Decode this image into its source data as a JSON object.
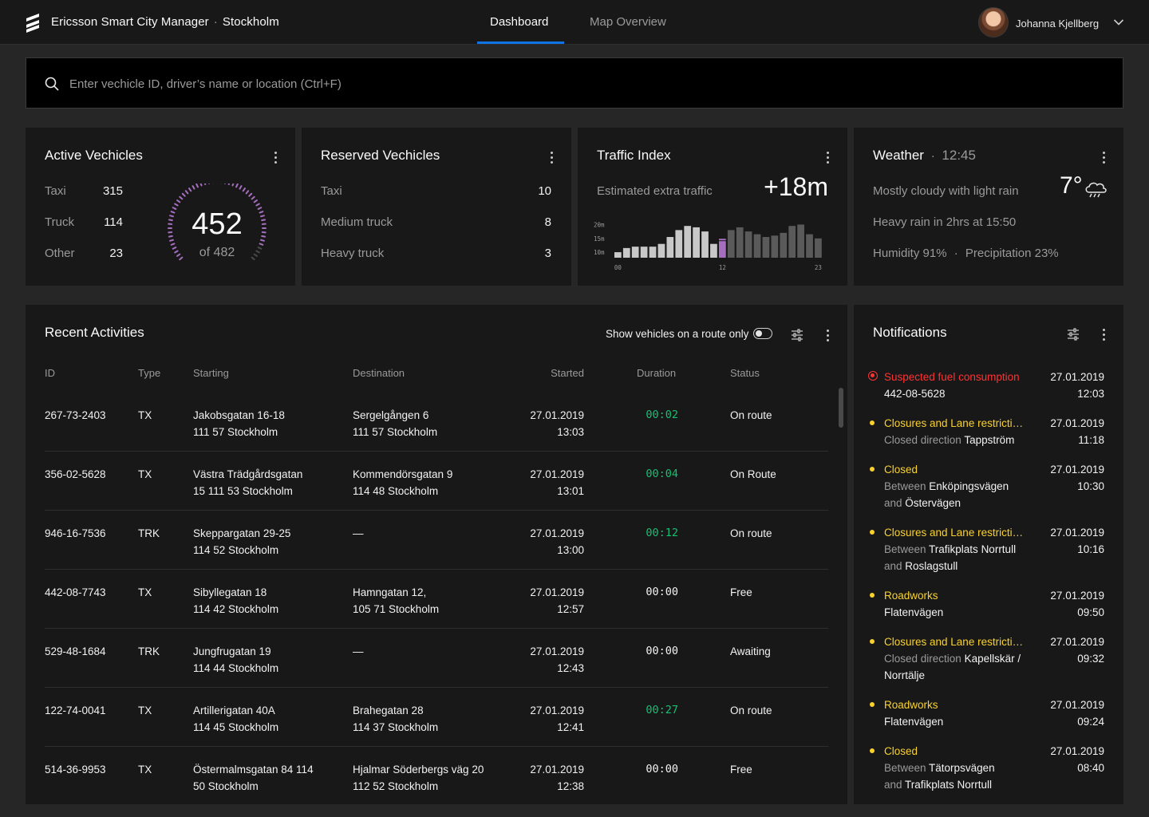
{
  "app": {
    "name": "Ericsson Smart City Manager",
    "separator": "·",
    "city": "Stockholm"
  },
  "nav": {
    "tabs": [
      {
        "label": "Dashboard",
        "active": true
      },
      {
        "label": "Map Overview",
        "active": false
      }
    ]
  },
  "user": {
    "name": "Johanna Kjellberg",
    "avatar_icon": "avatar-photo",
    "menu_icon": "chevron-down-icon"
  },
  "search": {
    "placeholder": "Enter vechicle ID, driver’s name or location (Ctrl+F)",
    "value": "",
    "icon": "search-icon"
  },
  "active_vehicles": {
    "title": "Active Vechicles",
    "rows": [
      {
        "label": "Taxi",
        "value": "315"
      },
      {
        "label": "Truck",
        "value": "114"
      },
      {
        "label": "Other",
        "value": "23"
      }
    ],
    "total": "452",
    "of_label": "of 482",
    "gauge_fraction": 0.938,
    "gauge_color": "#a56ebe"
  },
  "reserved_vehicles": {
    "title": "Reserved Vechicles",
    "rows": [
      {
        "label": "Taxi",
        "value": "10"
      },
      {
        "label": "Medium truck",
        "value": "8"
      },
      {
        "label": "Heavy truck",
        "value": "3"
      }
    ]
  },
  "traffic_index": {
    "title": "Traffic Index",
    "subtitle": "Estimated extra traffic",
    "value": "+18m",
    "highlight_color": "#a56ebe"
  },
  "chart_data": {
    "type": "bar",
    "title": "",
    "categories": [
      "00",
      "01",
      "02",
      "03",
      "04",
      "05",
      "06",
      "07",
      "08",
      "09",
      "10",
      "11",
      "12",
      "13",
      "14",
      "15",
      "16",
      "17",
      "18",
      "19",
      "20",
      "21",
      "22",
      "23"
    ],
    "values": [
      10,
      11.5,
      12,
      12,
      12,
      13,
      15.5,
      18,
      19.5,
      19,
      17.5,
      13,
      14,
      18,
      19,
      17.5,
      16.5,
      15.5,
      16,
      17,
      19.5,
      20,
      16.5,
      15
    ],
    "highlight_index": 12,
    "past_color": "#c8c8c8",
    "future_color": "#5a5a5a",
    "y_ticks": [
      "20m",
      "15m",
      "10m"
    ],
    "x_ticks": [
      "00",
      "12",
      "23"
    ],
    "ylim": [
      8,
      21
    ]
  },
  "weather": {
    "title": "Weather",
    "separator": "·",
    "time": "12:45",
    "temperature": "7°",
    "icon": "cloud-rain-icon",
    "description": "Mostly cloudy with light rain",
    "forecast": "Heavy rain in 2hrs at 15:50",
    "humidity": "Humidity 91%",
    "dot": "·",
    "precipitation": "Precipitation 23%"
  },
  "activities": {
    "title": "Recent Activities",
    "toggle_label": "Show vehicles on a route only",
    "toggle_on": false,
    "columns": [
      "ID",
      "Type",
      "Starting",
      "Destination",
      "Started",
      "Duration",
      "Status"
    ],
    "rows": [
      {
        "id": "267-73-2403",
        "type": "TX",
        "start1": "Jakobsgatan 16-18",
        "start2": "111 57 Stockholm",
        "dest1": "Sergelgången 6",
        "dest2": "111 57 Stockholm",
        "date": "27.01.2019",
        "time": "13:03",
        "duration": "00:02",
        "active": true,
        "status": "On route"
      },
      {
        "id": "356-02-5628",
        "type": "TX",
        "start1": "Västra Trädgårdsgatan",
        "start2": "15 111 53 Stockholm",
        "dest1": "Kommendörsgatan 9",
        "dest2": "114 48 Stockholm",
        "date": "27.01.2019",
        "time": "13:01",
        "duration": "00:04",
        "active": true,
        "status": "On Route"
      },
      {
        "id": "946-16-7536",
        "type": "TRK",
        "start1": "Skeppargatan 29-25",
        "start2": "114 52 Stockholm",
        "dest1": "—",
        "dest2": "",
        "date": "27.01.2019",
        "time": "13:00",
        "duration": "00:12",
        "active": true,
        "status": "On route"
      },
      {
        "id": "442-08-7743",
        "type": "TX",
        "start1": "Sibyllegatan 18",
        "start2": "114 42 Stockholm",
        "dest1": "Hamngatan 12,",
        "dest2": "105 71 Stockholm",
        "date": "27.01.2019",
        "time": "12:57",
        "duration": "00:00",
        "active": false,
        "status": "Free"
      },
      {
        "id": "529-48-1684",
        "type": "TRK",
        "start1": "Jungfrugatan 19",
        "start2": "114 44 Stockholm",
        "dest1": "—",
        "dest2": "",
        "date": "27.01.2019",
        "time": "12:43",
        "duration": "00:00",
        "active": false,
        "status": "Awaiting"
      },
      {
        "id": "122-74-0041",
        "type": "TX",
        "start1": "Artillerigatan 40A",
        "start2": "114 45 Stockholm",
        "dest1": "Brahegatan 28",
        "dest2": "114 37 Stockholm",
        "date": "27.01.2019",
        "time": "12:41",
        "duration": "00:27",
        "active": true,
        "status": "On route"
      },
      {
        "id": "514-36-9953",
        "type": "TX",
        "start1": "Östermalmsgatan 84 114",
        "start2": "50 Stockholm",
        "dest1": "Hjalmar Söderbergs väg 20",
        "dest2": "112 52 Stockholm",
        "date": "27.01.2019",
        "time": "12:38",
        "duration": "00:00",
        "active": false,
        "status": "Free"
      }
    ]
  },
  "notifications": {
    "title": "Notifications",
    "items": [
      {
        "severity": "critical",
        "title": "Suspected fuel consumption",
        "lines": [
          [
            {
              "t": "442-08-5628",
              "m": false
            }
          ]
        ],
        "date": "27.01.2019",
        "time": "12:03"
      },
      {
        "severity": "warning",
        "title": "Closures and Lane restrictions",
        "lines": [
          [
            {
              "t": "Closed direction ",
              "m": true
            },
            {
              "t": "Tappström",
              "m": false
            }
          ]
        ],
        "date": "27.01.2019",
        "time": "11:18"
      },
      {
        "severity": "warning",
        "title": "Closed",
        "lines": [
          [
            {
              "t": "Between ",
              "m": true
            },
            {
              "t": "Enköpingsvägen",
              "m": false
            }
          ],
          [
            {
              "t": "and ",
              "m": true
            },
            {
              "t": "Östervägen",
              "m": false
            }
          ]
        ],
        "date": "27.01.2019",
        "time": "10:30"
      },
      {
        "severity": "warning",
        "title": "Closures and Lane restrictions",
        "lines": [
          [
            {
              "t": "Between ",
              "m": true
            },
            {
              "t": "Trafikplats Norrtull",
              "m": false
            }
          ],
          [
            {
              "t": "and ",
              "m": true
            },
            {
              "t": "Roslagstull",
              "m": false
            }
          ]
        ],
        "date": "27.01.2019",
        "time": "10:16"
      },
      {
        "severity": "warning",
        "title": "Roadworks",
        "lines": [
          [
            {
              "t": "Flatenvägen",
              "m": false
            }
          ]
        ],
        "date": "27.01.2019",
        "time": "09:50"
      },
      {
        "severity": "warning",
        "title": "Closures and Lane restrictions",
        "lines": [
          [
            {
              "t": "Closed direction ",
              "m": true
            },
            {
              "t": "Kapellskär /",
              "m": false
            }
          ],
          [
            {
              "t": "Norrtälje",
              "m": false
            }
          ]
        ],
        "date": "27.01.2019",
        "time": "09:32"
      },
      {
        "severity": "warning",
        "title": "Roadworks",
        "lines": [
          [
            {
              "t": "Flatenvägen",
              "m": false
            }
          ]
        ],
        "date": "27.01.2019",
        "time": "09:24"
      },
      {
        "severity": "warning",
        "title": "Closed",
        "lines": [
          [
            {
              "t": "Between ",
              "m": true
            },
            {
              "t": "Tätorpsvägen",
              "m": false
            }
          ],
          [
            {
              "t": "and ",
              "m": true
            },
            {
              "t": "Trafikplats Norrtull",
              "m": false
            }
          ]
        ],
        "date": "27.01.2019",
        "time": "08:40"
      }
    ]
  },
  "colors": {
    "accent_blue": "#1174e6",
    "warning_yellow": "#fad22d",
    "critical_red": "#ff3232",
    "success_green": "#0fc373",
    "gauge_purple": "#a56ebe"
  }
}
